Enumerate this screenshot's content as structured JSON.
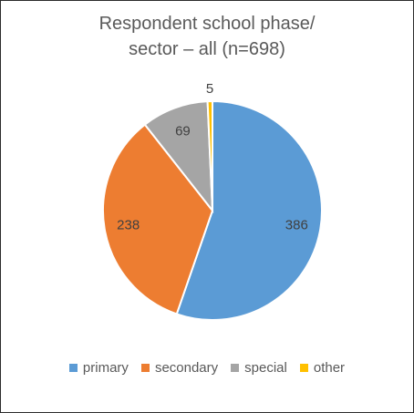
{
  "chart_data": {
    "type": "pie",
    "title_line1": "Respondent school phase/",
    "title_line2": "sector – all (n=698)",
    "categories": [
      "primary",
      "secondary",
      "special",
      "other"
    ],
    "values": [
      386,
      238,
      69,
      5
    ],
    "colors": [
      "#5B9BD5",
      "#ED7D31",
      "#A5A5A5",
      "#FFC000"
    ],
    "legend_position": "bottom"
  }
}
